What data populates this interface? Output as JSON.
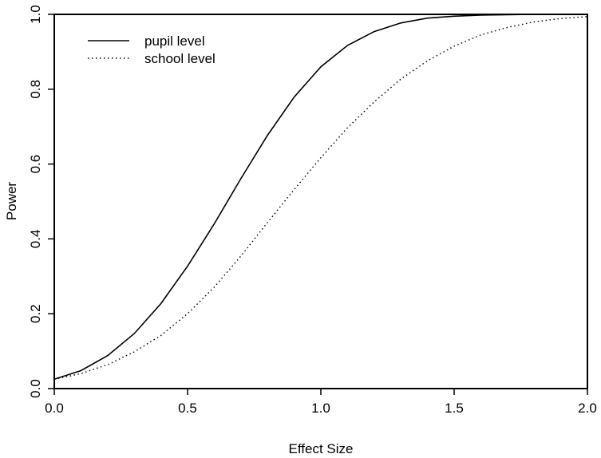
{
  "chart_data": {
    "type": "line",
    "xlabel": "Effect Size",
    "ylabel": "Power",
    "xlim": [
      0,
      2
    ],
    "ylim": [
      0,
      1
    ],
    "x_ticks": [
      0,
      0.5,
      1,
      1.5,
      2
    ],
    "x_tick_labels": [
      "0.0",
      "0.5",
      "1.0",
      "1.5",
      "2.0"
    ],
    "y_ticks": [
      0,
      0.2,
      0.4,
      0.6,
      0.8,
      1
    ],
    "y_tick_labels": [
      "0.0",
      "0.2",
      "0.4",
      "0.6",
      "0.8",
      "1.0"
    ],
    "grid": false,
    "legend_position": "top-left",
    "x": [
      0,
      0.1,
      0.2,
      0.3,
      0.4,
      0.5,
      0.6,
      0.7,
      0.8,
      0.9,
      1.0,
      1.1,
      1.2,
      1.3,
      1.4,
      1.5,
      1.6,
      1.7,
      1.8,
      1.9,
      2.0
    ],
    "series": [
      {
        "name": "pupil level",
        "line_style": "solid",
        "values": [
          0.025,
          0.048,
          0.088,
          0.147,
          0.227,
          0.327,
          0.44,
          0.561,
          0.677,
          0.779,
          0.86,
          0.917,
          0.954,
          0.977,
          0.99,
          0.995,
          0.998,
          0.999,
          1.0,
          1.0,
          1.0
        ]
      },
      {
        "name": "school level",
        "line_style": "dotted",
        "values": [
          0.025,
          0.04,
          0.064,
          0.098,
          0.142,
          0.2,
          0.271,
          0.354,
          0.444,
          0.532,
          0.617,
          0.697,
          0.766,
          0.827,
          0.876,
          0.915,
          0.945,
          0.965,
          0.98,
          0.989,
          0.994
        ]
      }
    ]
  }
}
